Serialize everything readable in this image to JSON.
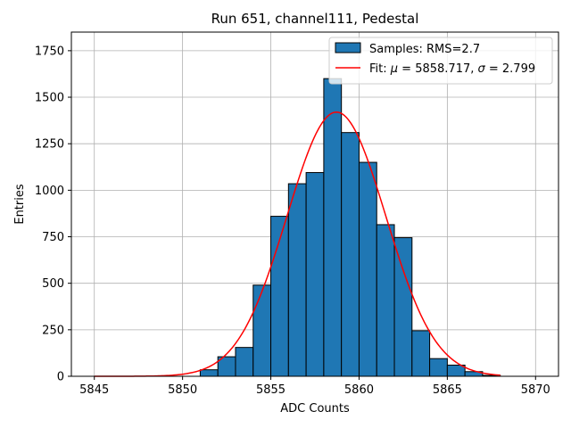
{
  "chart_data": {
    "type": "bar",
    "title": "Run 651, channel111, Pedestal",
    "xlabel": "ADC Counts",
    "ylabel": "Entries",
    "xlim": [
      5843.7,
      5871.3
    ],
    "ylim": [
      0,
      1850
    ],
    "xticks": [
      5845,
      5850,
      5855,
      5860,
      5865,
      5870
    ],
    "yticks": [
      0,
      250,
      500,
      750,
      1000,
      1250,
      1500,
      1750
    ],
    "grid": true,
    "legend_position": "top-right",
    "histogram": {
      "name": "Samples: RMS=2.7",
      "color": "#1f77b4",
      "edge_color": "#000000",
      "bin_edges": [
        5851,
        5852,
        5853,
        5854,
        5855,
        5856,
        5857,
        5858,
        5859,
        5860,
        5861,
        5862,
        5863,
        5864,
        5865,
        5866,
        5867,
        5868
      ],
      "counts": [
        35,
        105,
        155,
        490,
        860,
        1035,
        1095,
        1600,
        1310,
        1150,
        815,
        745,
        245,
        95,
        60,
        25,
        5
      ]
    },
    "fit": {
      "name": "Fit: μ = 5858.717, σ = 2.799",
      "color": "#ff0000",
      "amplitude": 1420,
      "mu": 5858.717,
      "sigma": 2.799,
      "x_range": [
        5845,
        5868
      ]
    }
  }
}
